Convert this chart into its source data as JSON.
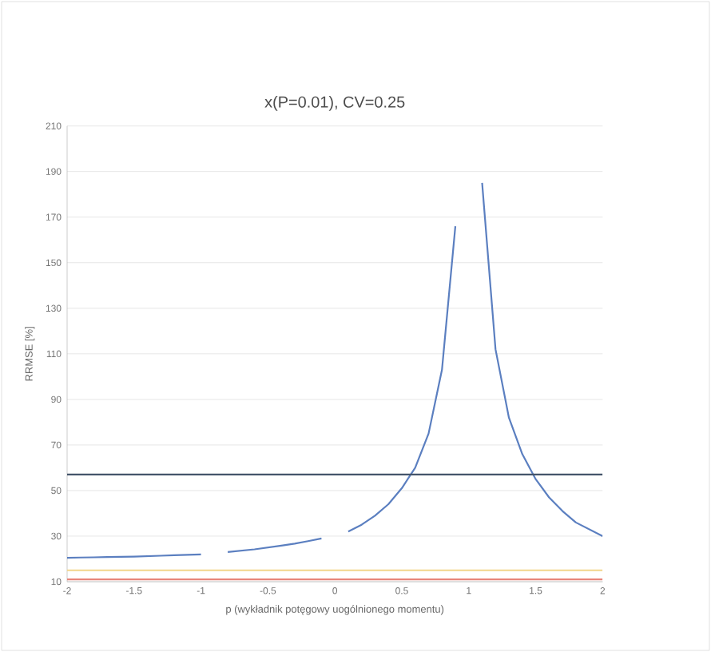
{
  "chart_data": {
    "type": "line",
    "title": "x(P=0.01), CV=0.25",
    "xlabel": "p (wykładnik potęgowy uogólnionego momentu)",
    "ylabel": "RRMSE [%]",
    "xlim": [
      -2,
      2
    ],
    "ylim": [
      10,
      210
    ],
    "xticks": [
      -2,
      -1.5,
      -1,
      -0.5,
      0,
      0.5,
      1,
      1.5,
      2
    ],
    "yticks": [
      10,
      30,
      50,
      70,
      90,
      110,
      130,
      150,
      170,
      190,
      210
    ],
    "grid": "y",
    "series": [
      {
        "color": "#5b7fc0",
        "x": [
          -2,
          -1.9,
          -1.8,
          -1.7,
          -1.6,
          -1.5,
          -1.4,
          -1.3,
          -1.2,
          -1.1,
          -1.0,
          -0.9,
          -0.8,
          -0.7,
          -0.6,
          -0.5,
          -0.4,
          -0.3,
          -0.2,
          -0.1,
          0,
          0.1,
          0.2,
          0.3,
          0.4,
          0.5,
          0.6,
          0.7,
          0.8,
          0.9,
          1.0,
          1.1,
          1.2,
          1.3,
          1.4,
          1.5,
          1.6,
          1.7,
          1.8,
          1.9,
          2.0
        ],
        "values": [
          20.5,
          20.6,
          20.7,
          20.8,
          20.9,
          21.0,
          21.2,
          21.4,
          21.6,
          21.8,
          22.0,
          null,
          23.0,
          23.6,
          24.2,
          25,
          25.8,
          26.7,
          27.8,
          29,
          null,
          32,
          35,
          39,
          44,
          51,
          60,
          75,
          103,
          166,
          null,
          185,
          112,
          82,
          66,
          55,
          47,
          41,
          36,
          33,
          30
        ]
      },
      {
        "color": "#44546a",
        "x": [
          -2,
          2
        ],
        "values": [
          57,
          57
        ]
      },
      {
        "color": "#f2d58a",
        "x": [
          -2,
          2
        ],
        "values": [
          15,
          15
        ]
      },
      {
        "color": "#e8857a",
        "x": [
          -2,
          2
        ],
        "values": [
          11,
          11
        ]
      }
    ]
  }
}
